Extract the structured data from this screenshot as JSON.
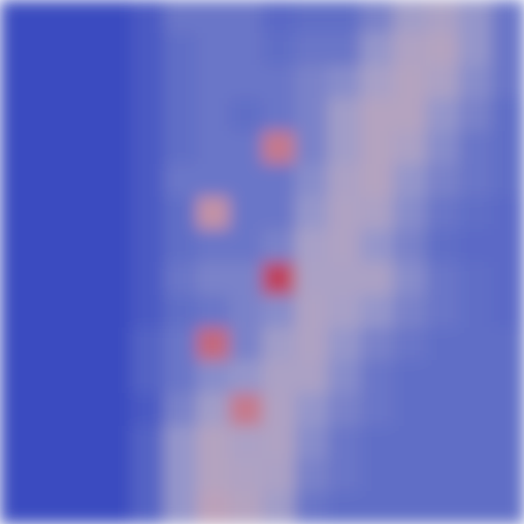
{
  "chart_data": {
    "type": "heatmap",
    "tick_labels": false,
    "zlim": [
      0,
      1
    ],
    "cells": [
      [
        0,
        0,
        0,
        0,
        0.05,
        0.15,
        0.15,
        0.15,
        0.1,
        0.12,
        0.12,
        0.2,
        0.35,
        0.4,
        0.3,
        0.15
      ],
      [
        0,
        0,
        0,
        0,
        0.05,
        0.12,
        0.15,
        0.15,
        0.12,
        0.15,
        0.15,
        0.3,
        0.42,
        0.45,
        0.3,
        0.15
      ],
      [
        0,
        0,
        0,
        0,
        0.05,
        0.12,
        0.15,
        0.15,
        0.15,
        0.2,
        0.25,
        0.38,
        0.45,
        0.4,
        0.25,
        0.15
      ],
      [
        0,
        0,
        0,
        0,
        0.05,
        0.12,
        0.15,
        0.12,
        0.15,
        0.2,
        0.35,
        0.45,
        0.45,
        0.3,
        0.2,
        0.12
      ],
      [
        0,
        0,
        0,
        0,
        0.05,
        0.12,
        0.15,
        0.15,
        0.7,
        0.2,
        0.35,
        0.45,
        0.4,
        0.25,
        0.15,
        0.12
      ],
      [
        0,
        0,
        0,
        0,
        0.05,
        0.15,
        0.15,
        0.15,
        0.15,
        0.25,
        0.4,
        0.45,
        0.3,
        0.2,
        0.15,
        0.12
      ],
      [
        0,
        0,
        0,
        0,
        0.05,
        0.12,
        0.6,
        0.15,
        0.15,
        0.3,
        0.42,
        0.4,
        0.25,
        0.15,
        0.12,
        0.1
      ],
      [
        0,
        0,
        0,
        0,
        0.05,
        0.12,
        0.15,
        0.15,
        0.2,
        0.38,
        0.42,
        0.3,
        0.2,
        0.12,
        0.1,
        0.1
      ],
      [
        0,
        0,
        0,
        0,
        0.05,
        0.15,
        0.2,
        0.2,
        0.85,
        0.4,
        0.4,
        0.4,
        0.25,
        0.15,
        0.12,
        0.1
      ],
      [
        0,
        0,
        0,
        0,
        0.05,
        0.12,
        0.15,
        0.2,
        0.25,
        0.42,
        0.38,
        0.3,
        0.2,
        0.15,
        0.12,
        0.1
      ],
      [
        0,
        0,
        0,
        0,
        0.08,
        0.15,
        0.75,
        0.2,
        0.35,
        0.42,
        0.3,
        0.2,
        0.15,
        0.12,
        0.12,
        0.12
      ],
      [
        0,
        0,
        0,
        0,
        0.08,
        0.15,
        0.25,
        0.3,
        0.4,
        0.4,
        0.25,
        0.15,
        0.12,
        0.12,
        0.12,
        0.12
      ],
      [
        0,
        0,
        0,
        0,
        0.05,
        0.2,
        0.35,
        0.7,
        0.42,
        0.3,
        0.2,
        0.15,
        0.12,
        0.12,
        0.12,
        0.12
      ],
      [
        0,
        0,
        0,
        0,
        0.08,
        0.3,
        0.45,
        0.4,
        0.42,
        0.25,
        0.15,
        0.12,
        0.12,
        0.12,
        0.12,
        0.12
      ],
      [
        0,
        0,
        0,
        0,
        0.08,
        0.3,
        0.45,
        0.42,
        0.4,
        0.2,
        0.15,
        0.12,
        0.12,
        0.12,
        0.12,
        0.12
      ],
      [
        0,
        0,
        0,
        0,
        0.08,
        0.3,
        0.5,
        0.45,
        0.35,
        0.15,
        0.12,
        0.12,
        0.12,
        0.12,
        0.12,
        0.12
      ]
    ]
  }
}
